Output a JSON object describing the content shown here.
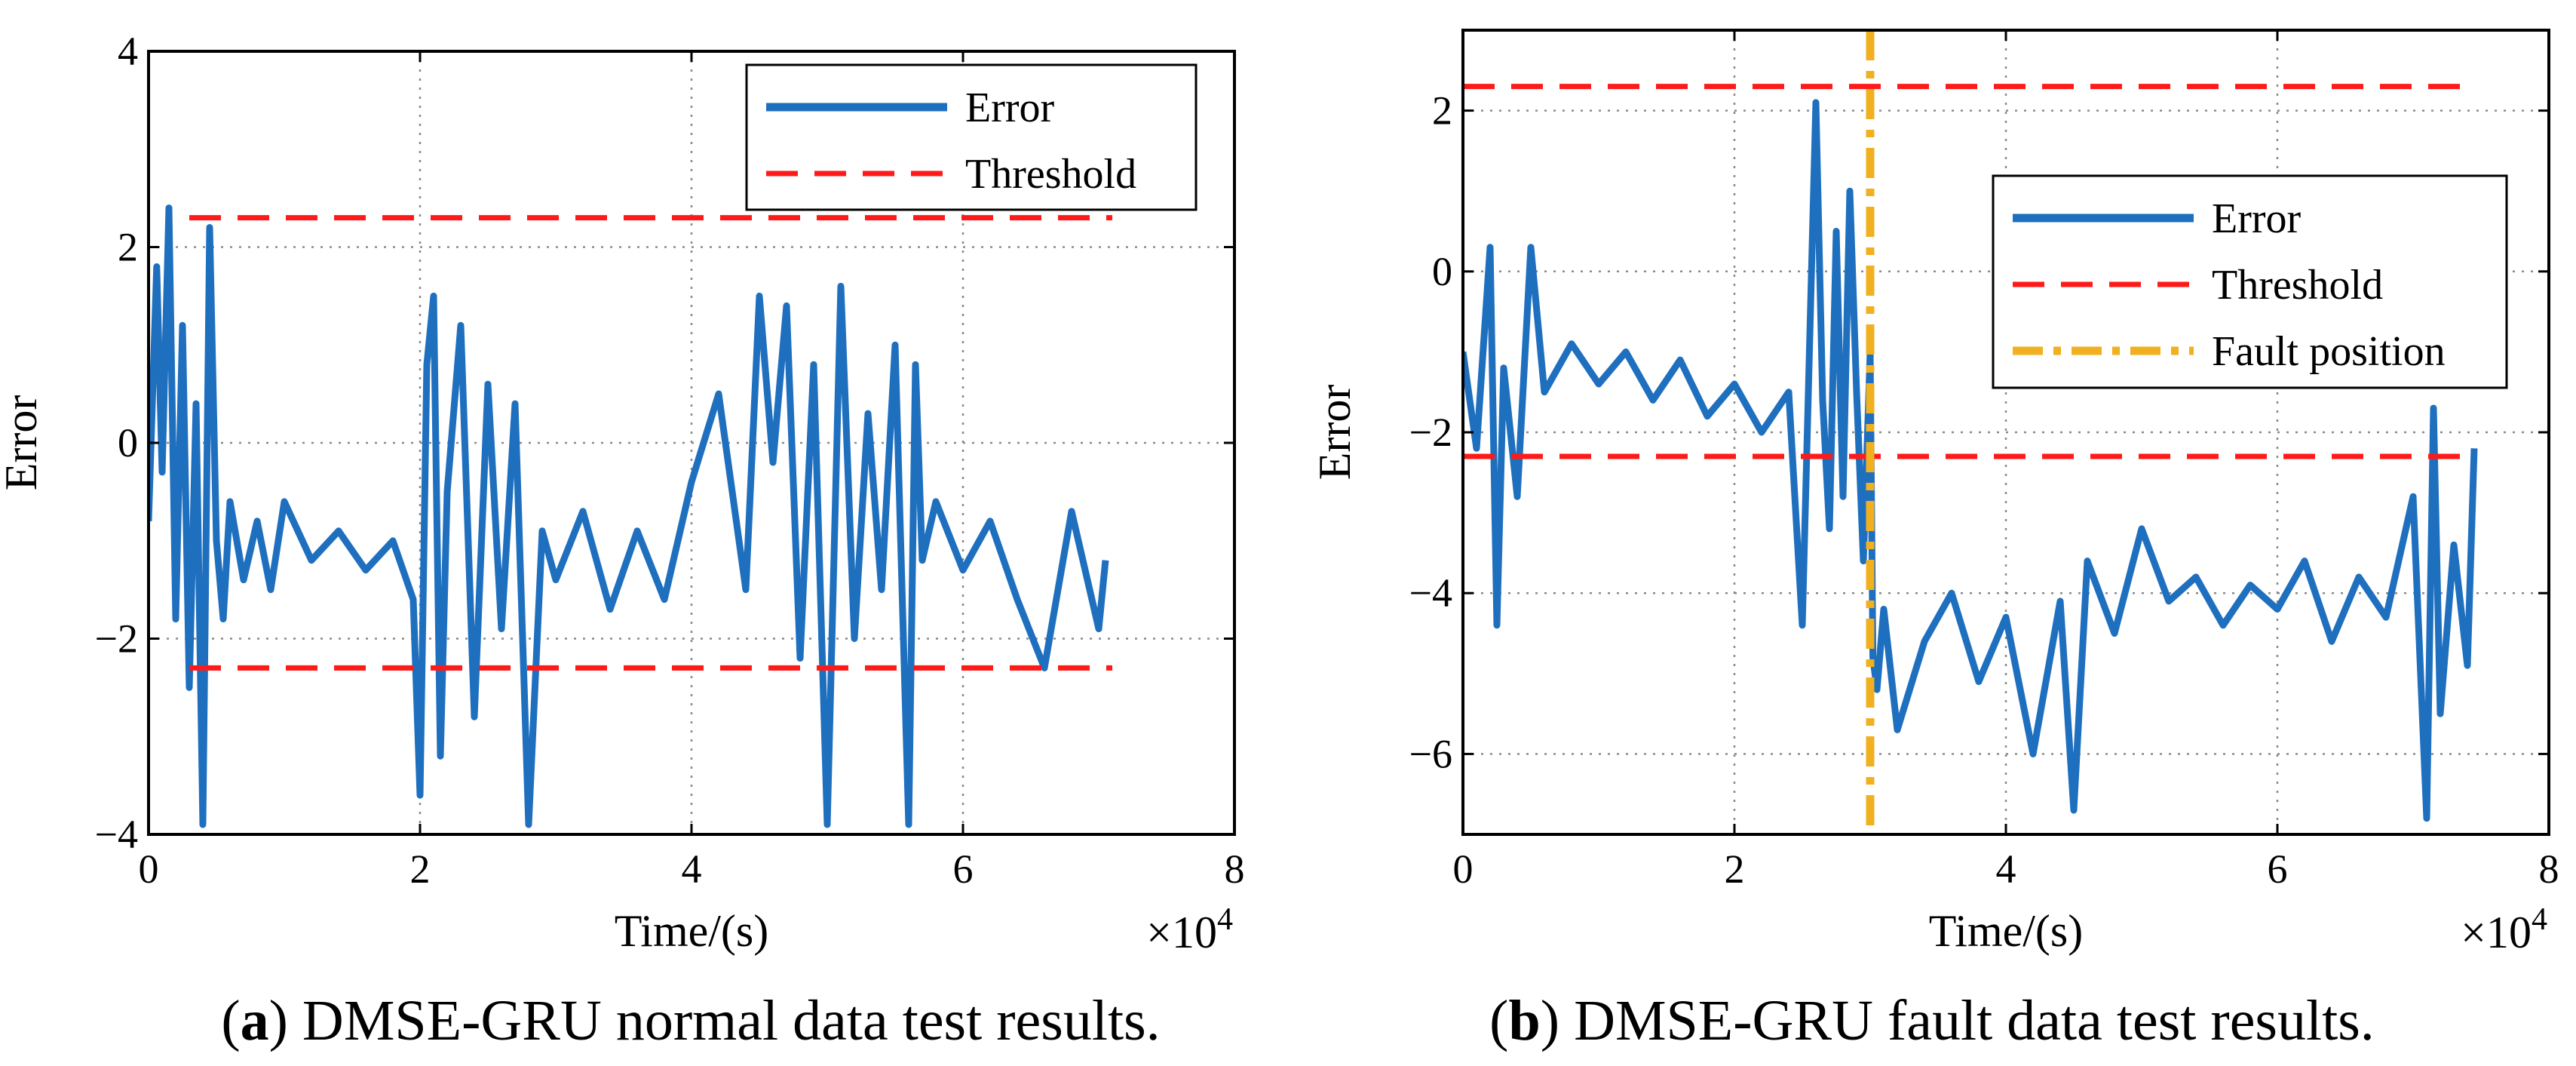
{
  "chart_data": [
    {
      "type": "line",
      "panel_letter": "a",
      "caption": "DMSE-GRU normal data test results.",
      "ylabel": "Error",
      "xlabel": "Time/(s)",
      "x_multiplier": "×10",
      "x_multiplier_exp": "4",
      "xlim": [
        0,
        8
      ],
      "ylim": [
        -4,
        4
      ],
      "xticks": [
        0,
        2,
        4,
        6,
        8
      ],
      "xtick_labels": [
        "0",
        "2",
        "4",
        "6",
        "8"
      ],
      "yticks": [
        -4,
        -2,
        0,
        2,
        4
      ],
      "ytick_labels": [
        "−4",
        "−2",
        "0",
        "2",
        "4"
      ],
      "grid": true,
      "legend_position": "top-right",
      "legend": [
        "Error",
        "Threshold"
      ],
      "series": [
        {
          "name": "Error",
          "color": "#1f6fbf",
          "x": [
            0,
            0.06,
            0.1,
            0.15,
            0.2,
            0.25,
            0.3,
            0.35,
            0.4,
            0.45,
            0.5,
            0.55,
            0.6,
            0.7,
            0.8,
            0.9,
            1.0,
            1.2,
            1.4,
            1.6,
            1.8,
            1.95,
            2.0,
            2.05,
            2.1,
            2.15,
            2.2,
            2.3,
            2.4,
            2.5,
            2.6,
            2.7,
            2.8,
            2.9,
            3.0,
            3.2,
            3.4,
            3.6,
            3.8,
            4.0,
            4.2,
            4.4,
            4.5,
            4.6,
            4.7,
            4.8,
            4.9,
            5.0,
            5.1,
            5.2,
            5.3,
            5.4,
            5.5,
            5.6,
            5.65,
            5.7,
            5.8,
            6.0,
            6.2,
            6.4,
            6.6,
            6.8,
            7.0,
            7.05
          ],
          "y": [
            -0.8,
            1.8,
            -0.3,
            2.4,
            -1.8,
            1.2,
            -2.5,
            0.4,
            -3.9,
            2.2,
            -1.0,
            -1.8,
            -0.6,
            -1.4,
            -0.8,
            -1.5,
            -0.6,
            -1.2,
            -0.9,
            -1.3,
            -1.0,
            -1.6,
            -3.6,
            0.8,
            1.5,
            -3.2,
            -0.5,
            1.2,
            -2.8,
            0.6,
            -1.9,
            0.4,
            -3.9,
            -0.9,
            -1.4,
            -0.7,
            -1.7,
            -0.9,
            -1.6,
            -0.4,
            0.5,
            -1.5,
            1.5,
            -0.2,
            1.4,
            -2.2,
            0.8,
            -3.9,
            1.6,
            -2.0,
            0.3,
            -1.5,
            1.0,
            -3.9,
            0.8,
            -1.2,
            -0.6,
            -1.3,
            -0.8,
            -1.6,
            -2.3,
            -0.7,
            -1.9,
            -1.2
          ]
        },
        {
          "name": "Threshold",
          "color": "#ff1a1a",
          "upper": 2.3,
          "lower": -2.3,
          "x_range": [
            0.3,
            7.1
          ]
        }
      ]
    },
    {
      "type": "line",
      "panel_letter": "b",
      "caption": "DMSE-GRU fault data test results.",
      "ylabel": "Error",
      "xlabel": "Time/(s)",
      "x_multiplier": "×10",
      "x_multiplier_exp": "4",
      "xlim": [
        0,
        8
      ],
      "ylim": [
        -7,
        3
      ],
      "xticks": [
        0,
        2,
        4,
        6,
        8
      ],
      "xtick_labels": [
        "0",
        "2",
        "4",
        "6",
        "8"
      ],
      "yticks": [
        -6,
        -4,
        -2,
        0,
        2
      ],
      "ytick_labels": [
        "−6",
        "−4",
        "−2",
        "0",
        "2"
      ],
      "grid": true,
      "legend_position": "top-right",
      "legend": [
        "Error",
        "Threshold",
        "Fault position"
      ],
      "series": [
        {
          "name": "Error",
          "color": "#1f6fbf",
          "x": [
            0,
            0.1,
            0.2,
            0.25,
            0.3,
            0.4,
            0.5,
            0.6,
            0.8,
            1.0,
            1.2,
            1.4,
            1.6,
            1.8,
            2.0,
            2.2,
            2.4,
            2.5,
            2.6,
            2.65,
            2.7,
            2.75,
            2.8,
            2.85,
            2.9,
            2.95,
            3.0,
            3.02,
            3.05,
            3.1,
            3.2,
            3.4,
            3.6,
            3.8,
            4.0,
            4.2,
            4.4,
            4.5,
            4.6,
            4.8,
            5.0,
            5.2,
            5.4,
            5.6,
            5.8,
            6.0,
            6.2,
            6.4,
            6.6,
            6.8,
            7.0,
            7.1,
            7.15,
            7.2,
            7.3,
            7.4,
            7.45
          ],
          "y": [
            -1.0,
            -2.2,
            0.3,
            -4.4,
            -1.2,
            -2.8,
            0.3,
            -1.5,
            -0.9,
            -1.4,
            -1.0,
            -1.6,
            -1.1,
            -1.8,
            -1.4,
            -2.0,
            -1.5,
            -4.4,
            2.1,
            -1.6,
            -3.2,
            0.5,
            -2.8,
            1.0,
            -1.5,
            -3.6,
            -1.0,
            -4.8,
            -5.2,
            -4.2,
            -5.7,
            -4.6,
            -4.0,
            -5.1,
            -4.3,
            -6.0,
            -4.1,
            -6.7,
            -3.6,
            -4.5,
            -3.2,
            -4.1,
            -3.8,
            -4.4,
            -3.9,
            -4.2,
            -3.6,
            -4.6,
            -3.8,
            -4.3,
            -2.8,
            -6.8,
            -1.7,
            -5.5,
            -3.4,
            -4.9,
            -2.2
          ]
        },
        {
          "name": "Threshold",
          "color": "#ff1a1a",
          "upper": 2.3,
          "lower": -2.3,
          "x_range_upper": [
            0,
            7.4
          ],
          "x_range_lower": [
            0,
            7.4
          ]
        },
        {
          "name": "Fault position",
          "color": "#f0b020",
          "x": 3.0
        }
      ]
    }
  ]
}
